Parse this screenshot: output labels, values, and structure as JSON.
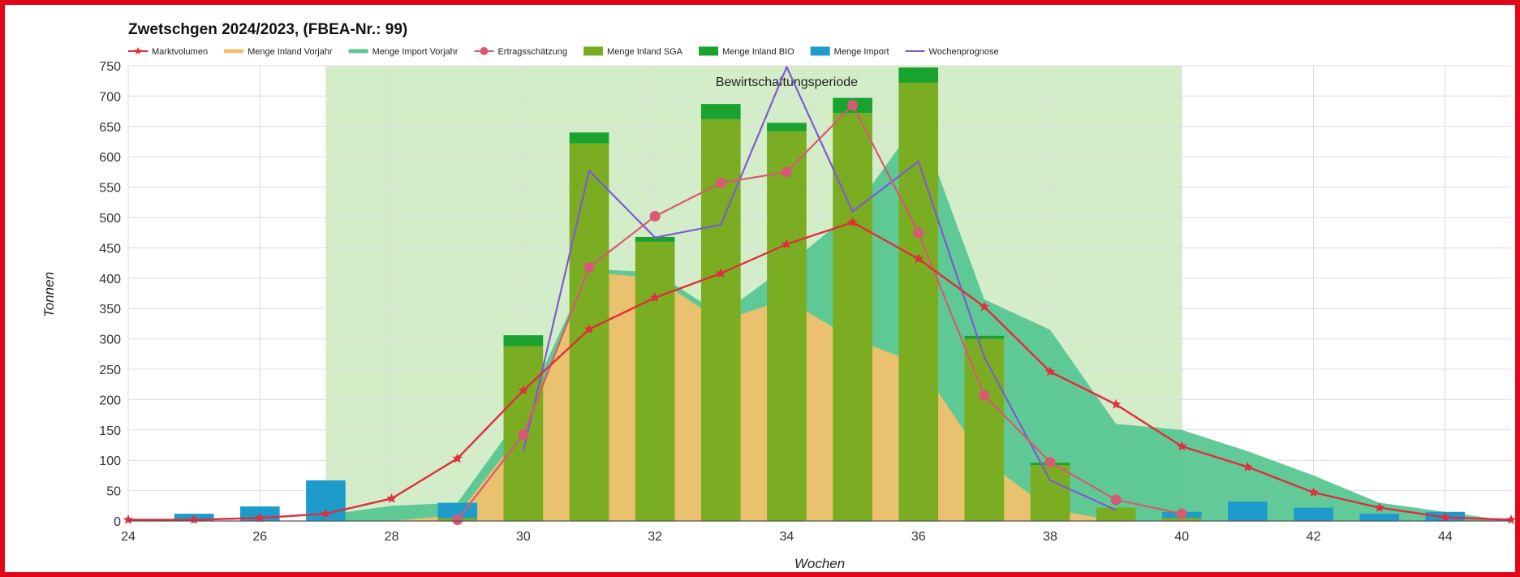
{
  "chart_data": {
    "type": "bar",
    "title": "Zwetschgen 2024/2023, (FBEA-Nr.: 99)",
    "xlabel": "Wochen",
    "ylabel": "Tonnen",
    "xlim": [
      24,
      45
    ],
    "ylim": [
      0,
      750
    ],
    "x_ticks": [
      24,
      26,
      28,
      30,
      32,
      34,
      36,
      38,
      40,
      42,
      44
    ],
    "y_ticks": [
      0,
      50,
      100,
      150,
      200,
      250,
      300,
      350,
      400,
      450,
      500,
      550,
      600,
      650,
      700,
      750
    ],
    "grid": true,
    "legend_position": "top-left",
    "band": {
      "label": "Bewirtschaftungsperiode",
      "x_start": 27,
      "x_end": 40,
      "color": "#d3edc9"
    },
    "legend": [
      {
        "label": "Marktvolumen",
        "kind": "line-star",
        "color": "#e12d3c"
      },
      {
        "label": "Menge Inland Vorjahr",
        "kind": "area",
        "color": "#f1c16b"
      },
      {
        "label": "Menge Import Vorjahr",
        "kind": "area",
        "color": "#58c792"
      },
      {
        "label": "Ertragsschätzung",
        "kind": "line-dot",
        "color": "#d65a72"
      },
      {
        "label": "Menge Inland SGA",
        "kind": "bar",
        "color": "#7aad22"
      },
      {
        "label": "Menge Inland BIO",
        "kind": "bar",
        "color": "#19a22d"
      },
      {
        "label": "Menge Import",
        "kind": "bar",
        "color": "#1d9ccc"
      },
      {
        "label": "Wochenprognose",
        "kind": "line",
        "color": "#7e5bd0"
      }
    ],
    "series": [
      {
        "name": "Menge Inland Vorjahr",
        "type": "area",
        "color": "#f1c16b",
        "points": [
          [
            27,
            0
          ],
          [
            28,
            0
          ],
          [
            29,
            10
          ],
          [
            30,
            150
          ],
          [
            31,
            410
          ],
          [
            32,
            400
          ],
          [
            33,
            330
          ],
          [
            34,
            365
          ],
          [
            35,
            300
          ],
          [
            36,
            260
          ],
          [
            37,
            100
          ],
          [
            38,
            20
          ],
          [
            39,
            0
          ]
        ]
      },
      {
        "name": "Menge Import Vorjahr",
        "type": "area",
        "color": "#58c792",
        "points": [
          [
            27,
            10
          ],
          [
            28,
            25
          ],
          [
            29,
            30
          ],
          [
            30,
            180
          ],
          [
            31,
            415
          ],
          [
            32,
            410
          ],
          [
            33,
            340
          ],
          [
            34,
            420
          ],
          [
            35,
            510
          ],
          [
            36,
            660
          ],
          [
            37,
            365
          ],
          [
            38,
            315
          ],
          [
            39,
            160
          ],
          [
            40,
            150
          ],
          [
            41,
            115
          ],
          [
            42,
            75
          ],
          [
            43,
            30
          ],
          [
            44,
            15
          ],
          [
            45,
            0
          ]
        ]
      },
      {
        "name": "Menge Import",
        "type": "bar",
        "color": "#1d9ccc",
        "x": [
          25,
          26,
          27,
          29,
          40,
          41,
          42,
          43,
          44
        ],
        "values": [
          12,
          24,
          67,
          30,
          15,
          32,
          22,
          12,
          15
        ]
      },
      {
        "name": "Menge Inland SGA",
        "type": "bar",
        "color": "#7aad22",
        "x": [
          29,
          30,
          31,
          32,
          33,
          34,
          35,
          36,
          37,
          38,
          39,
          40
        ],
        "values": [
          5,
          288,
          622,
          460,
          662,
          642,
          672,
          722,
          300,
          92,
          22,
          5
        ]
      },
      {
        "name": "Menge Inland BIO",
        "type": "bar",
        "color": "#19a22d",
        "x": [
          30,
          31,
          32,
          33,
          34,
          35,
          36,
          37,
          38
        ],
        "values": [
          18,
          18,
          8,
          25,
          14,
          25,
          25,
          5,
          4
        ]
      },
      {
        "name": "Wochenprognose",
        "type": "line",
        "color": "#7e5bd0",
        "points": [
          [
            30,
            115
          ],
          [
            31,
            577
          ],
          [
            32,
            467
          ],
          [
            33,
            488
          ],
          [
            34,
            748
          ],
          [
            35,
            510
          ],
          [
            36,
            592
          ],
          [
            37,
            270
          ],
          [
            38,
            67
          ],
          [
            39,
            18
          ]
        ]
      },
      {
        "name": "Ertragsschätzung",
        "type": "line-dot",
        "color": "#d65a72",
        "points": [
          [
            29,
            2
          ],
          [
            30,
            142
          ],
          [
            31,
            418
          ],
          [
            32,
            502
          ],
          [
            33,
            557
          ],
          [
            34,
            575
          ],
          [
            35,
            685
          ],
          [
            36,
            475
          ],
          [
            37,
            207
          ],
          [
            38,
            97
          ],
          [
            39,
            35
          ],
          [
            40,
            12
          ]
        ]
      },
      {
        "name": "Marktvolumen",
        "type": "line-star",
        "color": "#e12d3c",
        "points": [
          [
            24,
            2
          ],
          [
            25,
            2
          ],
          [
            26,
            5
          ],
          [
            27,
            12
          ],
          [
            28,
            37
          ],
          [
            29,
            103
          ],
          [
            30,
            215
          ],
          [
            31,
            316
          ],
          [
            32,
            368
          ],
          [
            33,
            408
          ],
          [
            34,
            456
          ],
          [
            35,
            492
          ],
          [
            36,
            432
          ],
          [
            37,
            353
          ],
          [
            38,
            246
          ],
          [
            39,
            192
          ],
          [
            40,
            123
          ],
          [
            41,
            89
          ],
          [
            42,
            47
          ],
          [
            43,
            22
          ],
          [
            44,
            6
          ],
          [
            45,
            2
          ]
        ]
      }
    ]
  }
}
